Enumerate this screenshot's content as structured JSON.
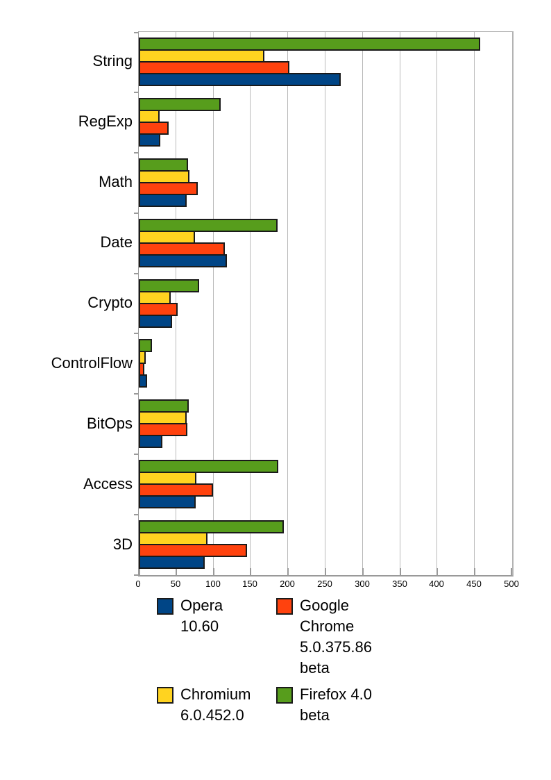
{
  "chart_data": {
    "type": "bar",
    "orientation": "horizontal",
    "title": "",
    "xlabel": "",
    "ylabel": "",
    "xlim": [
      0,
      500
    ],
    "x_ticks": [
      0,
      50,
      100,
      150,
      200,
      250,
      300,
      350,
      400,
      450,
      500
    ],
    "grid": true,
    "legend_position": "bottom",
    "categories": [
      "String",
      "RegExp",
      "Math",
      "Date",
      "Crypto",
      "ControlFlow",
      "BitOps",
      "Access",
      "3D"
    ],
    "series": [
      {
        "name": "Opera 10.60",
        "color": "#004586",
        "values": [
          269,
          27,
          62,
          116,
          43,
          9,
          30,
          74,
          86
        ]
      },
      {
        "name": "Google Chrome 5.0.375.86 beta",
        "color": "#FF420E",
        "values": [
          200,
          38,
          77,
          113,
          50,
          6,
          63,
          98,
          143
        ]
      },
      {
        "name": "Chromium 6.0.452.0",
        "color": "#FFD320",
        "values": [
          166,
          26,
          66,
          73,
          41,
          7,
          62,
          75,
          90
        ]
      },
      {
        "name": "Firefox 4.0 beta",
        "color": "#579D1C",
        "values": [
          455,
          108,
          64,
          184,
          79,
          16,
          65,
          185,
          192
        ]
      }
    ],
    "bar_draw_order_top_to_bottom": [
      3,
      2,
      1,
      0
    ]
  },
  "legend": {
    "items": [
      {
        "label": "Opera 10.60",
        "color": "#004586"
      },
      {
        "label": "Google Chrome 5.0.375.86 beta",
        "color": "#FF420E"
      },
      {
        "label": "Chromium 6.0.452.0",
        "color": "#FFD320"
      },
      {
        "label": "Firefox 4.0 beta",
        "color": "#579D1C"
      }
    ]
  },
  "colors": {
    "gridline": "#b9b9b9",
    "axis": "#999999",
    "bar_border": "#1a1a1a",
    "background": "#ffffff"
  }
}
